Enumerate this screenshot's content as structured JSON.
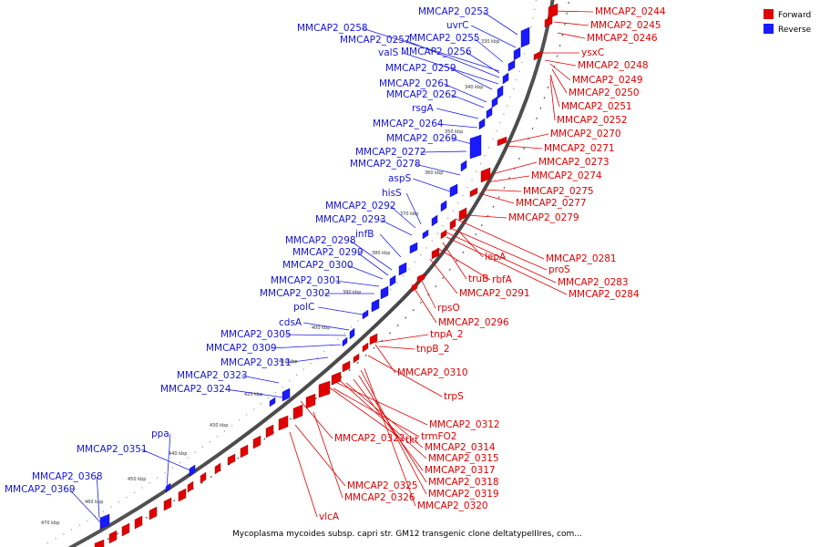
{
  "legend": {
    "forward": {
      "label": "Forward",
      "color": "#e00000"
    },
    "reverse": {
      "label": "Reverse",
      "color": "#1a1aff"
    }
  },
  "caption": "Mycoplasma mycoides subsp. capri str. GM12 transgenic clone deltatypeIIIres, com...",
  "ticks": [
    "330 kbp",
    "340 kbp",
    "350 kbp",
    "360 kbp",
    "370 kbp",
    "380 kbp",
    "390 kbp",
    "400 kbp",
    "410 kbp",
    "420 kbp",
    "430 kbp",
    "440 kbp",
    "450 kbp",
    "460 kbp",
    "470 kbp"
  ],
  "reverse_labels": [
    "MMCAP2_0253",
    "uvrC",
    "MMCAP2_0258",
    "MMCAP2_0257",
    "MMCAP2_0255",
    "valS",
    "MMCAP2_0256",
    "MMCAP2_0259",
    "MMCAP2_0261",
    "MMCAP2_0262",
    "rsgA",
    "MMCAP2_0264",
    "MMCAP2_0269",
    "MMCAP2_0272",
    "MMCAP2_0278",
    "aspS",
    "hisS",
    "MMCAP2_0292",
    "MMCAP2_0293",
    "infB",
    "MMCAP2_0298",
    "MMCAP2_0299",
    "MMCAP2_0300",
    "MMCAP2_0301",
    "MMCAP2_0302",
    "polC",
    "cdsA",
    "MMCAP2_0305",
    "MMCAP2_0309",
    "MMCAP2_0311",
    "MMCAP2_0323",
    "MMCAP2_0324",
    "ppa",
    "MMCAP2_0351",
    "MMCAP2_0368",
    "MMCAP2_0369"
  ],
  "forward_labels": [
    "MMCAP2_0244",
    "MMCAP2_0245",
    "MMCAP2_0246",
    "ysxC",
    "MMCAP2_0248",
    "MMCAP2_0249",
    "MMCAP2_0250",
    "MMCAP2_0251",
    "MMCAP2_0252",
    "MMCAP2_0270",
    "MMCAP2_0271",
    "MMCAP2_0273",
    "MMCAP2_0274",
    "MMCAP2_0275",
    "MMCAP2_0277",
    "MMCAP2_0279",
    "lepA",
    "MMCAP2_0281",
    "proS",
    "truB",
    "rbfA",
    "MMCAP2_0283",
    "MMCAP2_0291",
    "MMCAP2_0284",
    "rpsO",
    "MMCAP2_0296",
    "tnpA_2",
    "tnpB_2",
    "MMCAP2_0310",
    "trpS",
    "MMCAP2_0312",
    "trmFO2",
    "MMCAP2_0322",
    "tkt",
    "MMCAP2_0314",
    "MMCAP2_0315",
    "MMCAP2_0317",
    "MMCAP2_0318",
    "MMCAP2_0325",
    "MMCAP2_0319",
    "MMCAP2_0326",
    "MMCAP2_0320",
    "vlcA"
  ]
}
